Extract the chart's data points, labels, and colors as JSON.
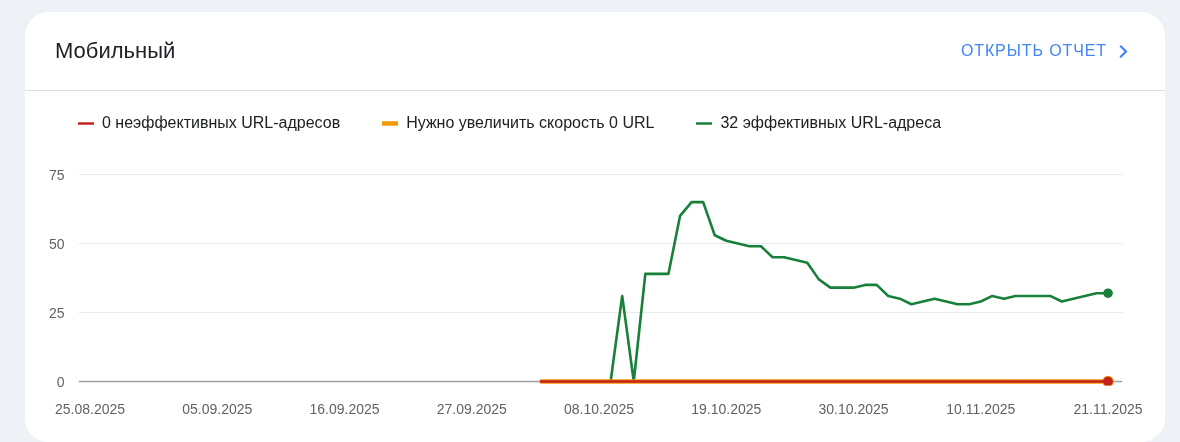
{
  "chart_data": {
    "type": "line",
    "title": "Мобильный",
    "annotations": [
      "ОТКРЫТЬ ОТЧЕТ"
    ],
    "x": [
      "2025-10-03",
      "2025-10-04",
      "2025-10-05",
      "2025-10-06",
      "2025-10-07",
      "2025-10-08",
      "2025-10-09",
      "2025-10-10",
      "2025-10-11",
      "2025-10-12",
      "2025-10-13",
      "2025-10-14",
      "2025-10-15",
      "2025-10-16",
      "2025-10-17",
      "2025-10-18",
      "2025-10-19",
      "2025-10-20",
      "2025-10-21",
      "2025-10-22",
      "2025-10-23",
      "2025-10-24",
      "2025-10-25",
      "2025-10-26",
      "2025-10-27",
      "2025-10-28",
      "2025-10-29",
      "2025-10-30",
      "2025-10-31",
      "2025-11-01",
      "2025-11-02",
      "2025-11-03",
      "2025-11-04",
      "2025-11-05",
      "2025-11-06",
      "2025-11-07",
      "2025-11-08",
      "2025-11-09",
      "2025-11-10",
      "2025-11-11",
      "2025-11-12",
      "2025-11-13",
      "2025-11-14",
      "2025-11-15",
      "2025-11-16",
      "2025-11-17",
      "2025-11-18",
      "2025-11-19",
      "2025-11-20",
      "2025-11-21"
    ],
    "series": [
      {
        "name": "0 неэффективных URL-адресов",
        "color": "#c5221f",
        "values": [
          0,
          0,
          0,
          0,
          0,
          0,
          0,
          0,
          0,
          0,
          0,
          0,
          0,
          0,
          0,
          0,
          0,
          0,
          0,
          0,
          0,
          0,
          0,
          0,
          0,
          0,
          0,
          0,
          0,
          0,
          0,
          0,
          0,
          0,
          0,
          0,
          0,
          0,
          0,
          0,
          0,
          0,
          0,
          0,
          0,
          0,
          0,
          0,
          0,
          0
        ]
      },
      {
        "name": "Нужно увеличить скорость 0 URL",
        "color": "#f29900",
        "values": [
          0,
          0,
          0,
          0,
          0,
          0,
          0,
          0,
          0,
          0,
          0,
          0,
          0,
          0,
          0,
          0,
          0,
          0,
          0,
          0,
          0,
          0,
          0,
          0,
          0,
          0,
          0,
          0,
          0,
          0,
          0,
          0,
          0,
          0,
          0,
          0,
          0,
          0,
          0,
          0,
          0,
          0,
          0,
          0,
          0,
          0,
          0,
          0,
          0,
          0
        ]
      },
      {
        "name": "32 эффективных URL-адреса",
        "color": "#188038",
        "values": [
          null,
          null,
          null,
          null,
          null,
          null,
          0,
          31,
          0,
          39,
          39,
          39,
          60,
          65,
          65,
          53,
          51,
          50,
          49,
          49,
          45,
          45,
          44,
          43,
          37,
          34,
          34,
          34,
          35,
          35,
          31,
          30,
          28,
          29,
          30,
          29,
          28,
          28,
          29,
          31,
          30,
          31,
          31,
          31,
          31,
          29,
          30,
          31,
          32,
          32
        ]
      }
    ],
    "xlim": [
      "2025-08-24",
      "2025-11-22T06:00"
    ],
    "xticks": [
      {
        "value": "2025-08-25",
        "label": "25.08.2025"
      },
      {
        "value": "2025-09-05",
        "label": "05.09.2025"
      },
      {
        "value": "2025-09-16",
        "label": "16.09.2025"
      },
      {
        "value": "2025-09-27",
        "label": "27.09.2025"
      },
      {
        "value": "2025-10-08",
        "label": "08.10.2025"
      },
      {
        "value": "2025-10-19",
        "label": "19.10.2025"
      },
      {
        "value": "2025-10-30",
        "label": "30.10.2025"
      },
      {
        "value": "2025-11-10",
        "label": "10.11.2025"
      },
      {
        "value": "2025-11-21",
        "label": "21.11.2025"
      }
    ],
    "ylim": [
      0,
      75
    ],
    "yticks": [
      0,
      25,
      50,
      75
    ],
    "grid": "y",
    "legend": "top left"
  }
}
